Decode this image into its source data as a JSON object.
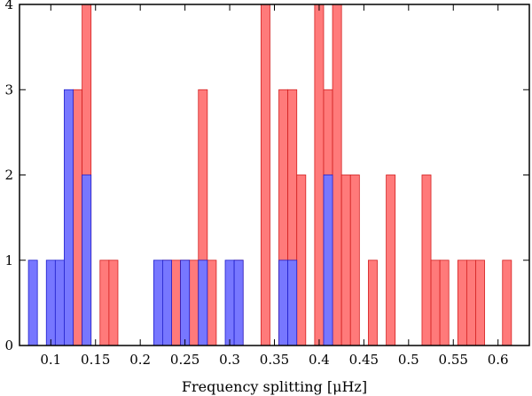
{
  "chart_data": {
    "type": "bar",
    "xlabel": "Frequency splitting [μHz]",
    "ylabel": "",
    "xlim": [
      0.065,
      0.635
    ],
    "ylim": [
      0,
      4
    ],
    "bin_width": 0.01,
    "grid": false,
    "legend": "none",
    "x_ticks": [
      "0.1",
      "0.15",
      "0.2",
      "0.25",
      "0.3",
      "0.35",
      "0.4",
      "0.45",
      "0.5",
      "0.55",
      "0.6"
    ],
    "x_tick_values": [
      0.1,
      0.15,
      0.2,
      0.25,
      0.3,
      0.35,
      0.4,
      0.45,
      0.5,
      0.55,
      0.6
    ],
    "y_ticks": [
      "0",
      "1",
      "2",
      "3",
      "4"
    ],
    "y_tick_values": [
      0,
      1,
      2,
      3,
      4
    ],
    "series": [
      {
        "color": "#ff7a7a",
        "edge": "#d42020",
        "x": [
          0.13,
          0.14,
          0.16,
          0.17,
          0.23,
          0.24,
          0.25,
          0.26,
          0.27,
          0.28,
          0.31,
          0.34,
          0.36,
          0.37,
          0.38,
          0.4,
          0.41,
          0.42,
          0.43,
          0.44,
          0.46,
          0.48,
          0.52,
          0.53,
          0.54,
          0.56,
          0.57,
          0.58,
          0.61
        ],
        "values": [
          3,
          4,
          1,
          1,
          1,
          1,
          1,
          1,
          3,
          1,
          1,
          4,
          3,
          3,
          2,
          4,
          3,
          4,
          2,
          2,
          1,
          2,
          2,
          1,
          1,
          1,
          1,
          1,
          1
        ]
      },
      {
        "color": "#7777ff",
        "edge": "#2020cc",
        "x": [
          0.08,
          0.1,
          0.11,
          0.12,
          0.14,
          0.22,
          0.23,
          0.25,
          0.27,
          0.3,
          0.31,
          0.36,
          0.37,
          0.41
        ],
        "values": [
          1,
          1,
          1,
          3,
          2,
          1,
          1,
          1,
          1,
          1,
          1,
          1,
          1,
          2
        ]
      }
    ]
  }
}
